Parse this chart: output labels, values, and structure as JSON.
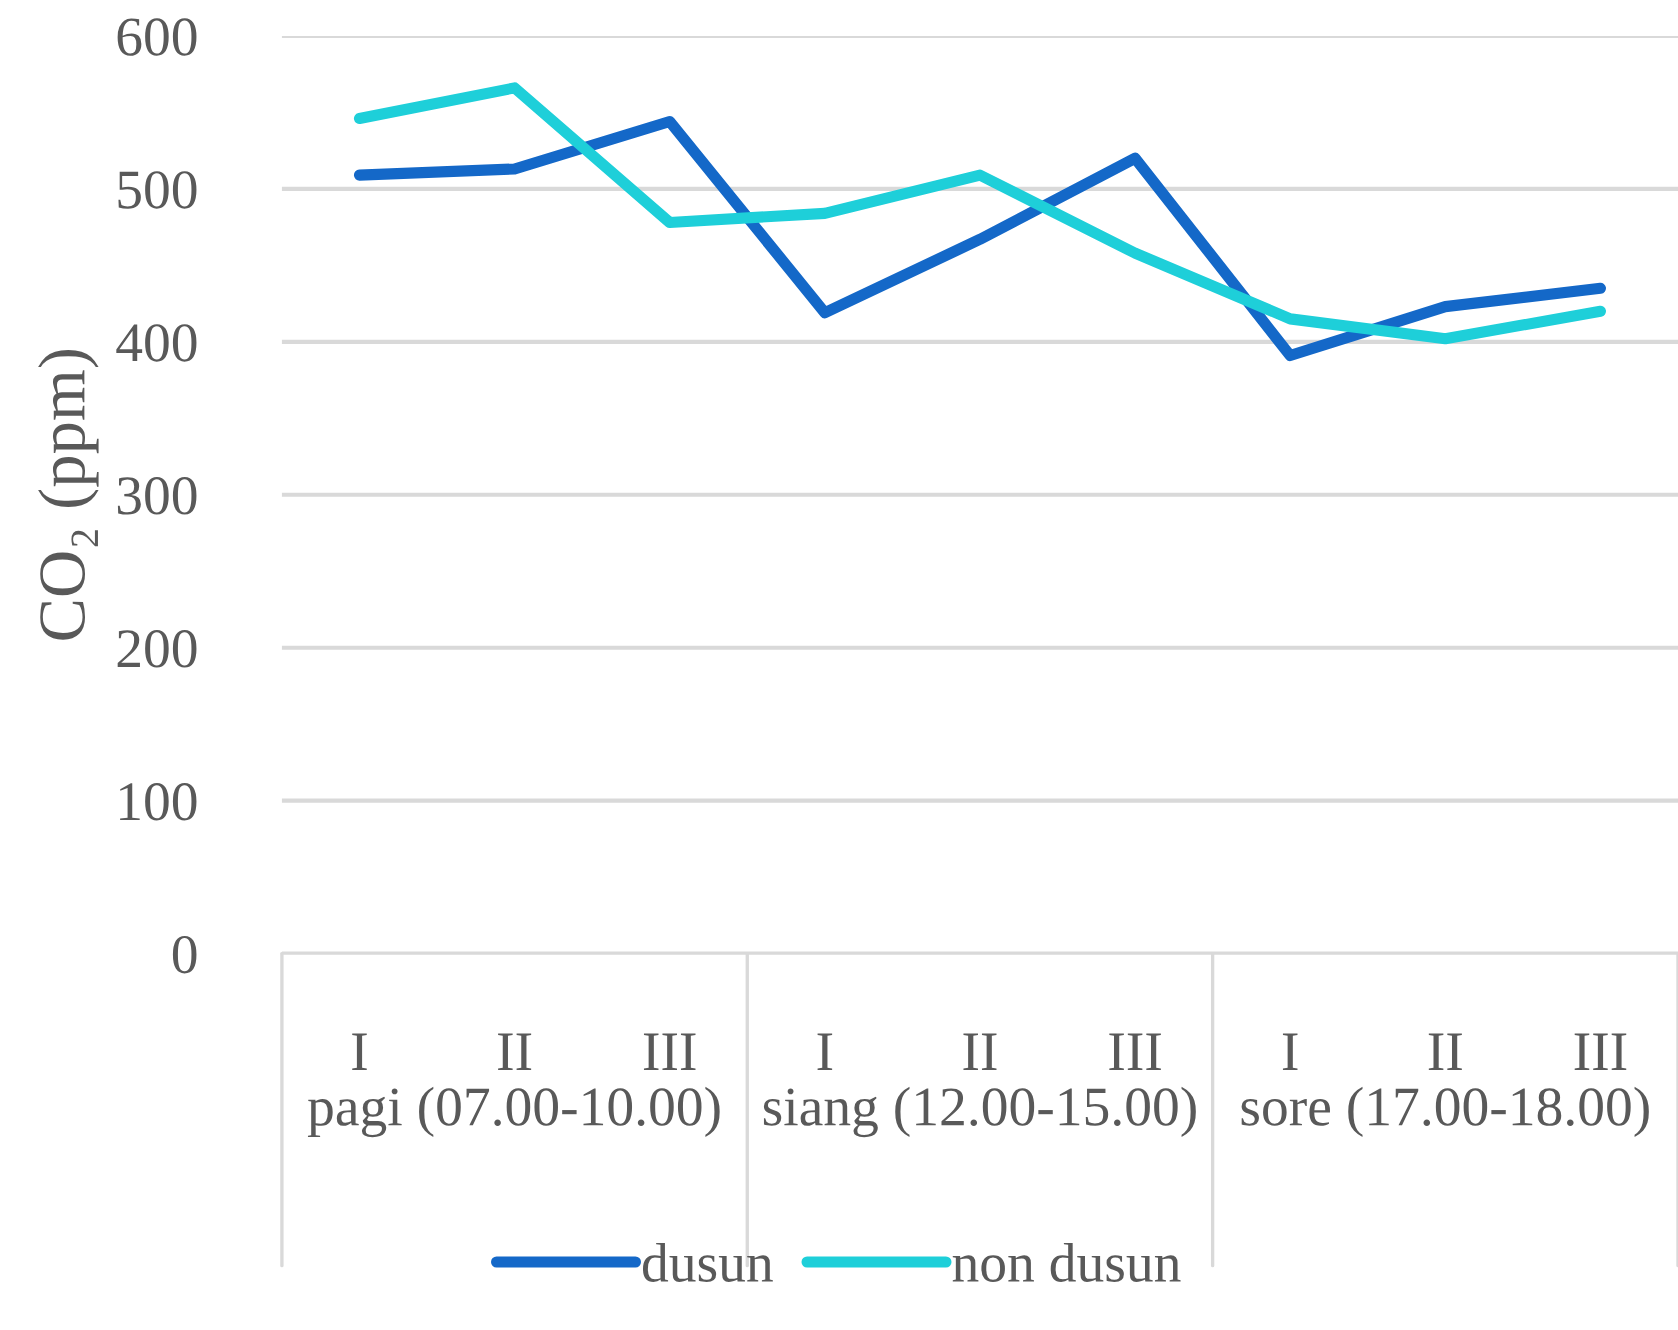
{
  "chart_data": {
    "type": "line",
    "ylabel": "CO₂ (ppm)",
    "categories": [
      "I",
      "II",
      "III",
      "I",
      "II",
      "III",
      "I",
      "II",
      "III"
    ],
    "annotations": [
      "pagi (07.00-10.00)",
      "siang (12.00-15.00)",
      "sore (17.00-18.00)"
    ],
    "series": [
      {
        "name": "dusun",
        "color": "#1468c8",
        "values": [
          509,
          513,
          544,
          419,
          467,
          520,
          391,
          423,
          435
        ]
      },
      {
        "name": "non dusun",
        "color": "#1ecfd9",
        "values": [
          546,
          566,
          478,
          484,
          509,
          458,
          415,
          402,
          420
        ]
      }
    ],
    "ylim": [
      0,
      600
    ],
    "yticks": [
      0,
      100,
      200,
      300,
      400,
      500,
      600
    ],
    "grid": "y",
    "legend": "bottom",
    "marker": "none",
    "line_style": "solid"
  }
}
